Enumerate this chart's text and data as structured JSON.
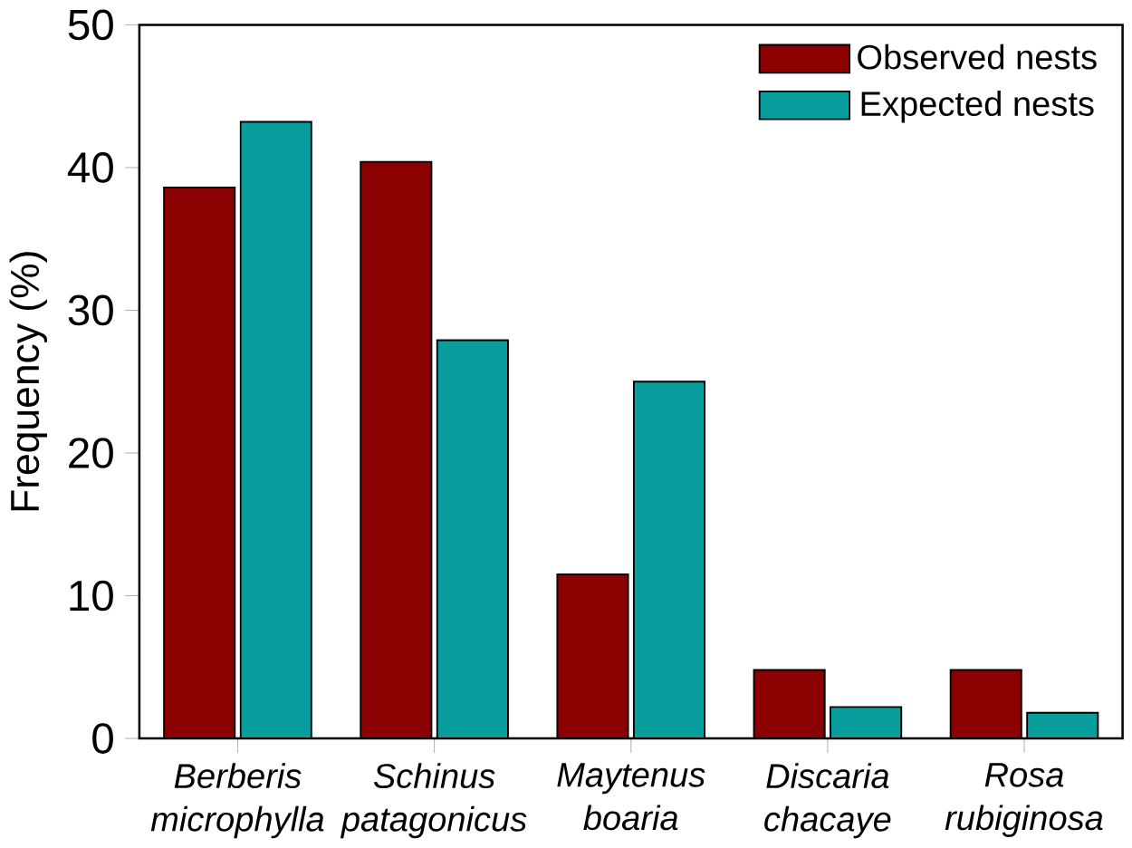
{
  "chart_data": {
    "type": "bar",
    "ylabel": "Frequency (%)",
    "categories": [
      "Berberis microphylla",
      "Schinus patagonicus",
      "Maytenus boaria",
      "Discaria chacaye",
      "Rosa rubiginosa"
    ],
    "series": [
      {
        "name": "Observed nests",
        "color": "#8b0000",
        "values": [
          38.6,
          40.4,
          11.5,
          4.8,
          4.8
        ]
      },
      {
        "name": "Expected nests",
        "color": "#0a9d9d",
        "values": [
          43.2,
          27.9,
          25,
          2.2,
          1.8
        ]
      }
    ],
    "ylim": [
      0,
      50
    ],
    "yticks": [
      0,
      10,
      20,
      30,
      40,
      50
    ],
    "legend": "top right"
  }
}
